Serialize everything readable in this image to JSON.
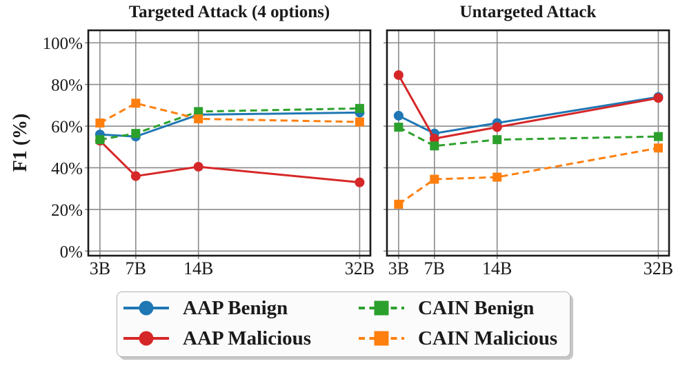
{
  "figure": {
    "ylabel": "F1 (%)",
    "background": "#ffffff",
    "text_color": "#1a1a1a",
    "grid_color": "#8a8a8a",
    "axis_color": "#1a1a1a"
  },
  "chart_data": [
    {
      "type": "line",
      "title": "Targeted Attack (4 options)",
      "xlabel": "",
      "ylabel": "F1 (%)",
      "x": [
        3,
        7,
        14,
        32
      ],
      "x_tick_labels": [
        "3B",
        "7B",
        "14B",
        "32B"
      ],
      "xlim": [
        1.7,
        33.2
      ],
      "ylim": [
        -2.2,
        106
      ],
      "y_ticks": [
        0,
        20,
        40,
        60,
        80,
        100
      ],
      "y_tick_labels": [
        "0%",
        "20%",
        "40%",
        "60%",
        "80%",
        "100%"
      ],
      "grid": true,
      "legend_position": "figure-bottom",
      "series": [
        {
          "name": "AAP Benign",
          "color": "#1f77b4",
          "line": "solid",
          "marker": "circle",
          "values": [
            56,
            55,
            65.5,
            66.5
          ]
        },
        {
          "name": "AAP Malicious",
          "color": "#d62728",
          "line": "solid",
          "marker": "circle",
          "values": [
            53,
            36,
            40.5,
            33
          ]
        },
        {
          "name": "CAIN Benign",
          "color": "#2ca02c",
          "line": "dashed",
          "marker": "square",
          "values": [
            53.5,
            56.5,
            67,
            68.5
          ]
        },
        {
          "name": "CAIN Malicious",
          "color": "#ff7f0e",
          "line": "dashed",
          "marker": "square",
          "values": [
            61.5,
            71,
            63.5,
            62
          ]
        }
      ]
    },
    {
      "type": "line",
      "title": "Untargeted Attack",
      "xlabel": "",
      "ylabel": "",
      "x": [
        3,
        7,
        14,
        32
      ],
      "x_tick_labels": [
        "3B",
        "7B",
        "14B",
        "32B"
      ],
      "xlim": [
        1.7,
        33.2
      ],
      "ylim": [
        -2.2,
        106
      ],
      "y_ticks": [
        0,
        20,
        40,
        60,
        80,
        100
      ],
      "y_tick_labels": [],
      "grid": true,
      "legend_position": "figure-bottom",
      "series": [
        {
          "name": "AAP Benign",
          "color": "#1f77b4",
          "line": "solid",
          "marker": "circle",
          "values": [
            65,
            56.5,
            61.5,
            74
          ]
        },
        {
          "name": "AAP Malicious",
          "color": "#d62728",
          "line": "solid",
          "marker": "circle",
          "values": [
            84.5,
            54,
            59.5,
            73.5
          ]
        },
        {
          "name": "CAIN Benign",
          "color": "#2ca02c",
          "line": "dashed",
          "marker": "square",
          "values": [
            59.5,
            50.5,
            53.5,
            55
          ]
        },
        {
          "name": "CAIN Malicious",
          "color": "#ff7f0e",
          "line": "dashed",
          "marker": "square",
          "values": [
            22.5,
            34.5,
            35.5,
            49.5
          ]
        }
      ]
    }
  ],
  "legend": {
    "entries": [
      {
        "label": "AAP Benign",
        "color": "#1f77b4",
        "line": "solid",
        "marker": "circle"
      },
      {
        "label": "AAP Malicious",
        "color": "#d62728",
        "line": "solid",
        "marker": "circle"
      },
      {
        "label": "CAIN Benign",
        "color": "#2ca02c",
        "line": "dashed",
        "marker": "square"
      },
      {
        "label": "CAIN Malicious",
        "color": "#ff7f0e",
        "line": "dashed",
        "marker": "square"
      }
    ]
  }
}
